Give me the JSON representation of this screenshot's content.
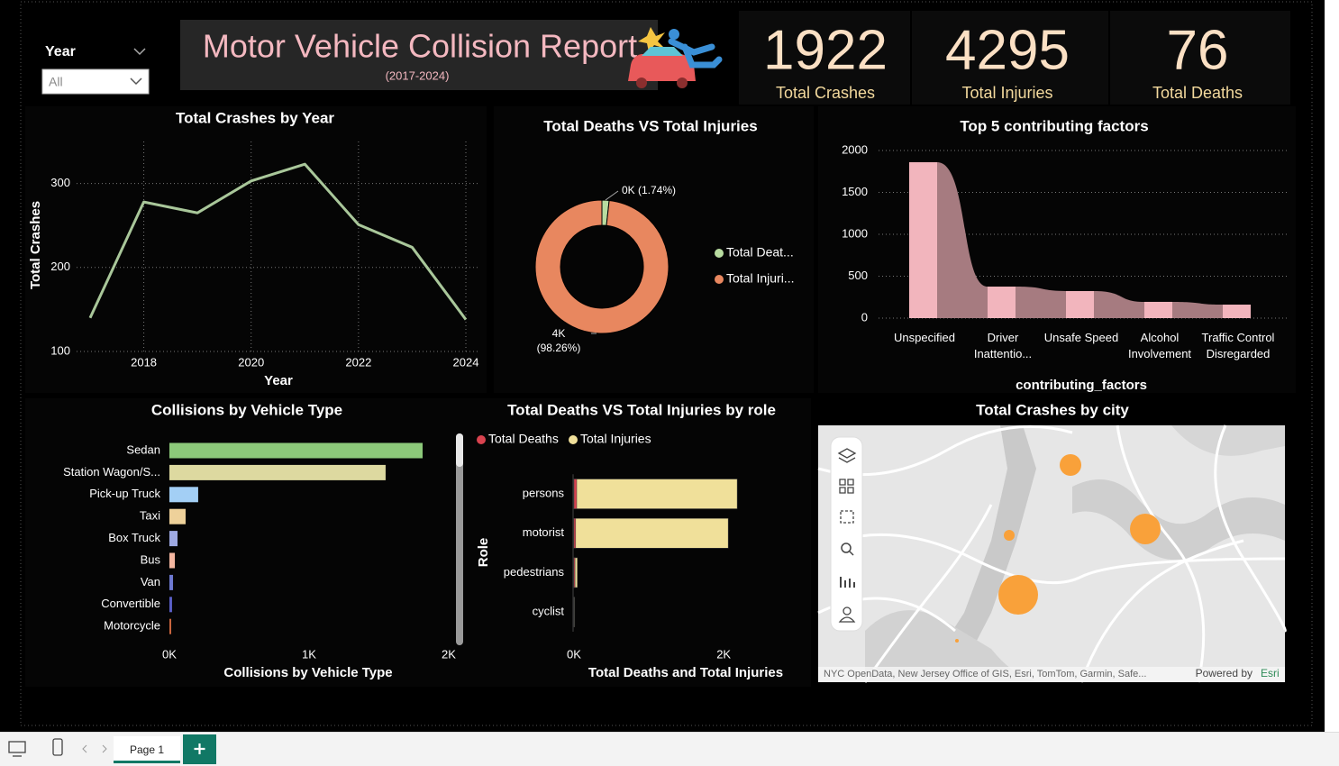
{
  "header": {
    "title": "Motor Vehicle Collision Report",
    "subtitle": "(2017-2024)"
  },
  "slicer": {
    "label": "Year",
    "value": "All"
  },
  "cards": [
    {
      "value": 1922,
      "label": "Total Crashes"
    },
    {
      "value": 4295,
      "label": "Total Injuries"
    },
    {
      "value": 76,
      "label": "Total Deaths"
    }
  ],
  "chart_data": [
    {
      "type": "line",
      "title": "Total Crashes by Year",
      "x": [
        2017,
        2018,
        2019,
        2020,
        2021,
        2022,
        2023,
        2024
      ],
      "values": [
        140,
        278,
        265,
        303,
        323,
        251,
        224,
        138
      ],
      "color": "#a9c79a",
      "xlabel": "Year",
      "ylabel": "Total Crashes",
      "xlim": [
        2017,
        2024
      ],
      "xticks": [
        2018,
        2020,
        2022,
        2024
      ],
      "ylim": [
        100,
        350
      ],
      "yticks": [
        100,
        200,
        300
      ],
      "grid": true
    },
    {
      "type": "donut",
      "title": "Total Deaths VS Total Injuries",
      "categories": [
        "Total Deat...",
        "Total Injuri..."
      ],
      "values": [
        76,
        4295
      ],
      "value_labels": [
        "0K (1.74%)",
        "4K (98.26%)"
      ],
      "colors": [
        "#b8dca0",
        "#e8875f"
      ]
    },
    {
      "type": "ribbon",
      "title": "Top 5 contributing factors",
      "categories": [
        "Unspecified",
        "Driver Inattentio...",
        "Unsafe Speed",
        "Alcohol Involvement",
        "Traffic Control Disregarded"
      ],
      "values": [
        1860,
        376,
        323,
        194,
        161
      ],
      "color": "#f2b5bd",
      "ribbon_color": "#a67b80",
      "xlabel": "contributing_factors",
      "ylim": [
        0,
        2000
      ],
      "yticks": [
        0,
        500,
        1000,
        1500,
        2000
      ],
      "grid": true
    },
    {
      "type": "hbar",
      "title": "Collisions by Vehicle Type",
      "categories": [
        "Sedan",
        "Station Wagon/S...",
        "Pick-up Truck",
        "Taxi",
        "Box Truck",
        "Bus",
        "Van",
        "Convertible",
        "Motorcycle"
      ],
      "values": [
        1813,
        1548,
        206,
        116,
        58,
        39,
        26,
        19,
        13
      ],
      "colors": [
        "#8cc97a",
        "#ddd9a0",
        "#a3cff5",
        "#eed19a",
        "#9ea9e3",
        "#f5b7a1",
        "#6d79d1",
        "#5a5fc7",
        "#c9653e"
      ],
      "xlabel": "Collisions by Vehicle Type",
      "xlim": [
        0,
        2000
      ],
      "xticks": [
        {
          "value": 0,
          "label": "0K"
        },
        {
          "value": 1000,
          "label": "1K"
        },
        {
          "value": 2000,
          "label": "2K"
        }
      ]
    },
    {
      "type": "hbar_grouped",
      "title": "Total Deaths VS Total Injuries by role",
      "categories": [
        "persons",
        "motorist",
        "pedestrians",
        "cyclist"
      ],
      "series": [
        {
          "name": "Total Deaths",
          "color": "#d9434f",
          "values": [
            36,
            22,
            14,
            4
          ]
        },
        {
          "name": "Total Injuries",
          "color": "#f0e09a",
          "values": [
            2180,
            2060,
            45,
            10
          ]
        }
      ],
      "xlabel": "Total Deaths and Total Injuries",
      "ylabel": "Role",
      "xlim": [
        0,
        2600
      ],
      "xticks": [
        {
          "value": 0,
          "label": "0K"
        },
        {
          "value": 2000,
          "label": "2K"
        }
      ]
    }
  ],
  "map": {
    "title": "Total Crashes by city",
    "attribution": "NYC OpenData, New Jersey Office of GIS, Esri, TomTom, Garmin, Safe...",
    "powered_by": "Powered by",
    "provider": "Esri"
  },
  "tabs": [
    "Page 1"
  ]
}
